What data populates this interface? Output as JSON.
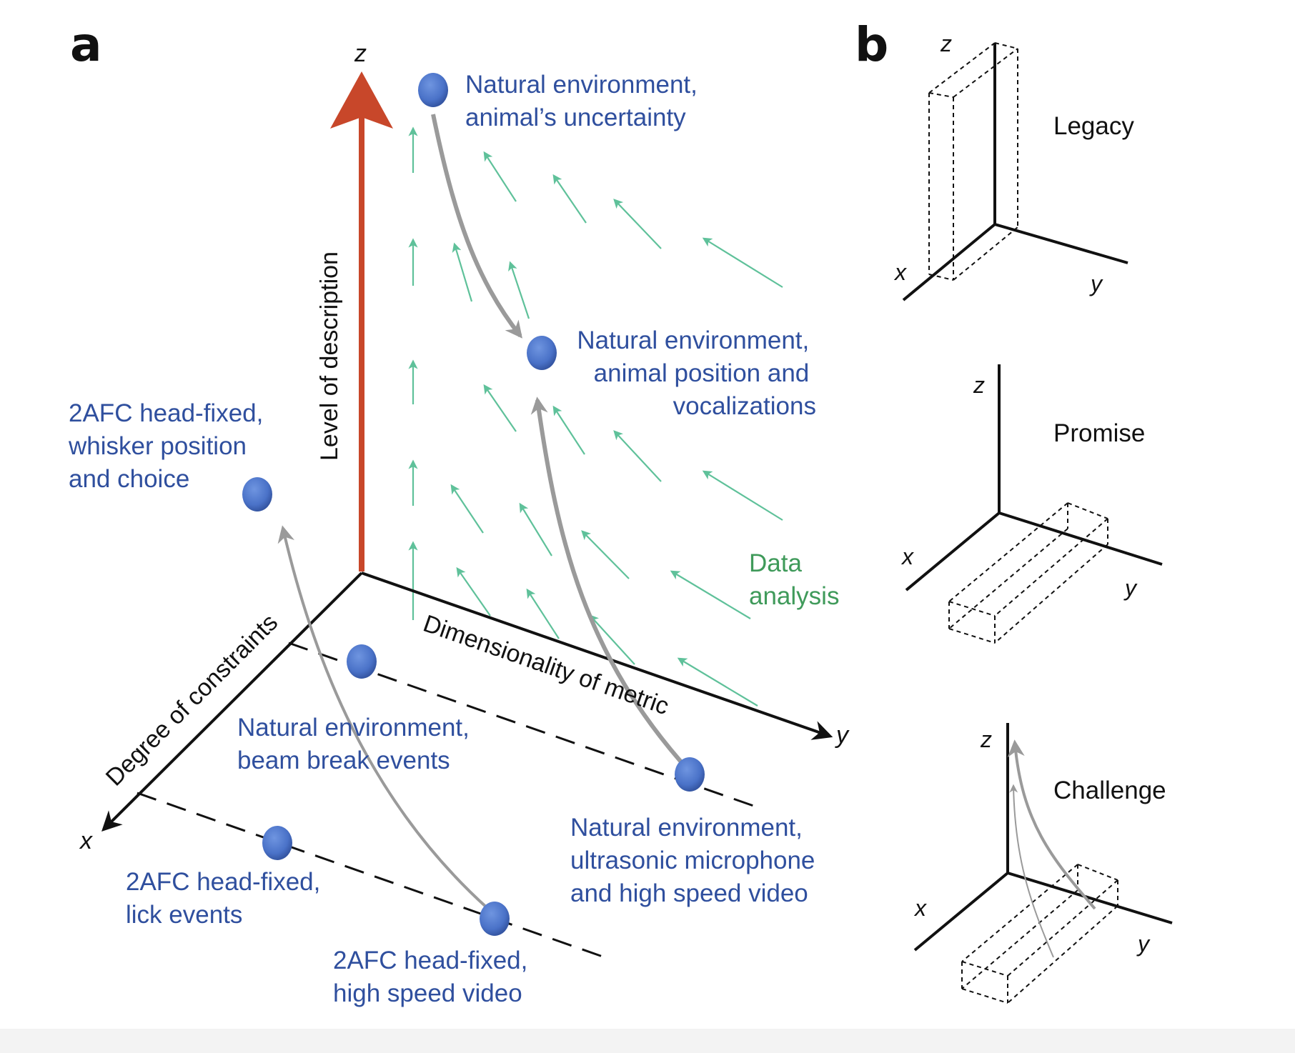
{
  "panel_a": {
    "label": "a",
    "axes": {
      "z": "z",
      "y": "y",
      "x": "x",
      "z_title": "Level of description",
      "y_title": "Dimensionality of metric",
      "x_title": "Degree of constraints"
    },
    "nodes": {
      "nat_uncertainty": [
        "Natural environment,",
        "animal’s uncertainty"
      ],
      "nat_position": [
        "Natural environment,",
        "animal position and",
        "vocalizations"
      ],
      "afc_whisker": [
        "2AFC head-fixed,",
        "whisker position",
        "and choice"
      ],
      "nat_beam": [
        "Natural environment,",
        "beam break events"
      ],
      "nat_ultrasonic": [
        "Natural environment,",
        "ultrasonic microphone",
        "and high speed video"
      ],
      "afc_lick": [
        "2AFC head-fixed,",
        "lick events"
      ],
      "afc_video": [
        "2AFC head-fixed,",
        "high speed video"
      ]
    },
    "data_analysis": [
      "Data",
      "analysis"
    ]
  },
  "panel_b": {
    "label": "b",
    "legacy": {
      "title": "Legacy",
      "z": "z",
      "x": "x",
      "y": "y"
    },
    "promise": {
      "title": "Promise",
      "z": "z",
      "x": "x",
      "y": "y"
    },
    "challenge": {
      "title": "Challenge",
      "z": "z",
      "x": "x",
      "y": "y"
    }
  },
  "colors": {
    "node_blue": "#4a72c8",
    "label_blue": "#2f4f9e",
    "z_arrow_red": "#c8472a",
    "flow_green": "#5fc19a",
    "data_green": "#3f9a5a",
    "grey_path": "#9a9a9a"
  }
}
